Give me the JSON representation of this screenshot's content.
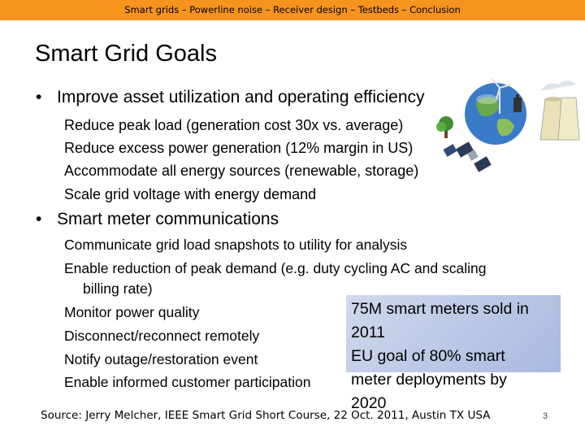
{
  "header": {
    "nav": "Smart grids – Powerline noise – Receiver design – Testbeds – Conclusion"
  },
  "title": "Smart Grid Goals",
  "section1": {
    "bullet": "Improve asset utilization and operating efficiency",
    "items": [
      "Reduce peak load (generation cost 30x vs. average)",
      "Reduce excess power generation (12% margin in US)",
      "Accommodate all energy sources (renewable, storage)",
      "Scale grid voltage with energy demand"
    ]
  },
  "section2": {
    "bullet": "Smart meter communications",
    "items": [
      "Communicate grid load snapshots to utility for analysis",
      "Enable reduction of peak demand (e.g. duty cycling AC and scaling",
      "billing rate)",
      "Monitor power quality",
      "Disconnect/reconnect remotely",
      "Notify outage/restoration event",
      "Enable informed customer participation"
    ]
  },
  "callout": {
    "lines": [
      "75M smart meters sold in",
      "2011",
      "EU goal of 80% smart",
      "meter deployments by",
      "2020"
    ]
  },
  "footer": {
    "source": "Source: Jerry Melcher, IEEE Smart Grid Short Course, 22 Oct. 2011, Austin TX USA",
    "page": "3"
  },
  "illustration": {
    "icons": [
      "globe-icon",
      "wind-turbine-icon",
      "power-plant-icon",
      "solar-panel-icon",
      "tree-icon",
      "satellite-icon",
      "battery-icon"
    ]
  }
}
